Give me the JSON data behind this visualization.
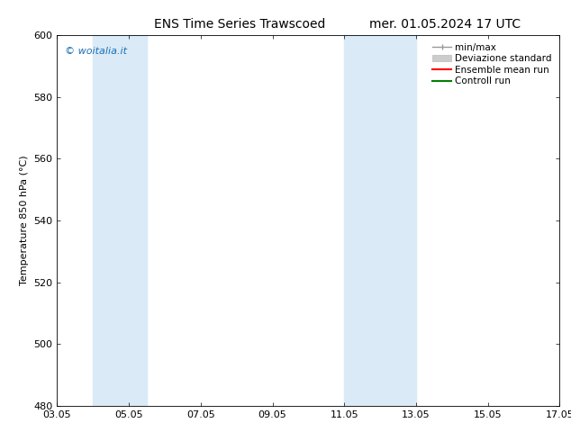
{
  "title_left": "ENS Time Series Trawscoed",
  "title_right": "mer. 01.05.2024 17 UTC",
  "ylabel": "Temperature 850 hPa (°C)",
  "ylim": [
    480,
    600
  ],
  "yticks": [
    480,
    500,
    520,
    540,
    560,
    580,
    600
  ],
  "xtick_labels": [
    "03.05",
    "05.05",
    "07.05",
    "09.05",
    "11.05",
    "13.05",
    "15.05",
    "17.05"
  ],
  "xtick_positions": [
    3,
    5,
    7,
    9,
    11,
    13,
    15,
    17
  ],
  "xlim": [
    3,
    17
  ],
  "shaded_bands": [
    {
      "x_start": 4.0,
      "x_end": 5.5
    },
    {
      "x_start": 11.0,
      "x_end": 13.0
    }
  ],
  "band_color": "#daeaf7",
  "watermark_text": "© woitalia.it",
  "watermark_color": "#1a6eb5",
  "legend_labels": [
    "min/max",
    "Deviazione standard",
    "Ensemble mean run",
    "Controll run"
  ],
  "bg_color": "#ffffff",
  "grid_color": "#cccccc",
  "font_size_title": 10,
  "font_size_axis": 8,
  "font_size_legend": 7.5,
  "font_size_watermark": 8
}
